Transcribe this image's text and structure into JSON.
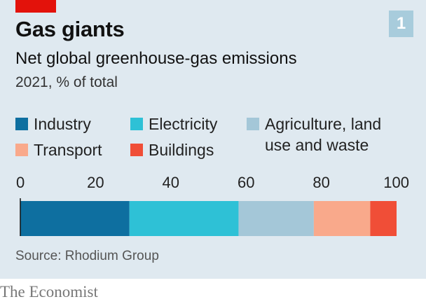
{
  "header": {
    "title": "Gas giants",
    "subtitle": "Net global greenhouse-gas emissions",
    "unit_line": "2021, % of total",
    "chart_number": "1"
  },
  "footer": {
    "source": "Source: Rhodium Group",
    "brand": "The Economist"
  },
  "colors": {
    "background": "#dfe9f0",
    "accent_red": "#e3120b",
    "badge": "#a8ccdc"
  },
  "chart_data": {
    "type": "bar",
    "orientation": "horizontal-stacked",
    "title": "Gas giants",
    "subtitle": "Net global greenhouse-gas emissions",
    "unit": "2021, % of total",
    "xlim": [
      0,
      100
    ],
    "ticks": [
      0,
      20,
      40,
      60,
      80,
      100
    ],
    "tick_labels": [
      "0",
      "20",
      "40",
      "60",
      "80",
      "100"
    ],
    "grid": false,
    "legend_position": "top",
    "series": [
      {
        "name": "Industry",
        "value": 29,
        "color": "#0e6fa0"
      },
      {
        "name": "Electricity",
        "value": 29,
        "color": "#2ec1d6"
      },
      {
        "name": "Agriculture, land use and waste",
        "value": 20,
        "color": "#a4c7d8"
      },
      {
        "name": "Transport",
        "value": 15,
        "color": "#f9a98b"
      },
      {
        "name": "Buildings",
        "value": 7,
        "color": "#f04e37"
      }
    ],
    "legend_labels": [
      "Industry",
      "Electricity",
      "Agriculture, land\nuse and waste",
      "Transport",
      "Buildings"
    ]
  }
}
